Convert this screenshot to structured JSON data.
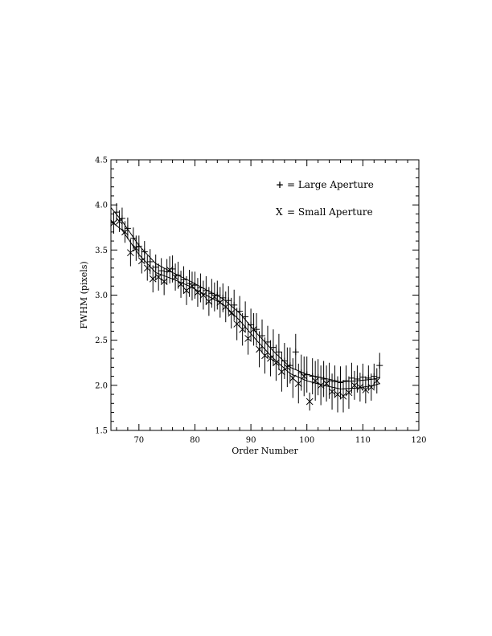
{
  "chart_data": {
    "type": "scatter",
    "xlabel": "Order Number",
    "ylabel": "FWHM (pixels)",
    "xlim": [
      65,
      120
    ],
    "ylim": [
      1.5,
      4.5
    ],
    "x_ticks": [
      "70",
      "80",
      "90",
      "100",
      "110",
      "120"
    ],
    "y_ticks": [
      "1.5",
      "2.0",
      "2.5",
      "3.0",
      "3.5",
      "4.0",
      "4.5"
    ],
    "grid": false,
    "legend": {
      "placement": "top-right",
      "entries": [
        {
          "symbol": "+",
          "text": "= Large Aperture"
        },
        {
          "symbol": "X",
          "text": "= Small Aperture"
        }
      ]
    },
    "series": [
      {
        "marker": "+",
        "x": [
          66,
          67,
          68,
          69,
          70,
          71,
          72,
          73,
          74,
          75,
          76,
          77,
          78,
          79,
          80,
          81,
          82,
          83,
          84,
          85,
          86,
          87,
          88,
          89,
          90,
          91,
          92,
          93,
          94,
          95,
          96,
          97,
          98,
          99,
          100,
          101,
          102,
          103,
          104,
          105,
          106,
          107,
          108,
          109,
          110,
          111,
          112,
          113
        ],
        "y": [
          3.92,
          3.85,
          3.74,
          3.63,
          3.54,
          3.48,
          3.37,
          3.31,
          3.27,
          3.26,
          3.29,
          3.22,
          3.17,
          3.13,
          3.11,
          3.08,
          3.05,
          3.02,
          3.0,
          2.97,
          2.94,
          2.89,
          2.82,
          2.76,
          2.67,
          2.62,
          2.55,
          2.48,
          2.42,
          2.37,
          2.27,
          2.22,
          2.37,
          2.14,
          2.12,
          2.1,
          2.09,
          2.07,
          2.05,
          2.04,
          2.03,
          2.05,
          2.08,
          2.07,
          2.09,
          2.08,
          2.1,
          2.22
        ],
        "err": [
          0.1,
          0.12,
          0.12,
          0.12,
          0.12,
          0.12,
          0.14,
          0.14,
          0.14,
          0.14,
          0.15,
          0.15,
          0.15,
          0.15,
          0.15,
          0.16,
          0.16,
          0.16,
          0.16,
          0.16,
          0.16,
          0.17,
          0.17,
          0.17,
          0.18,
          0.18,
          0.18,
          0.18,
          0.2,
          0.2,
          0.2,
          0.2,
          0.2,
          0.2,
          0.2,
          0.2,
          0.2,
          0.2,
          0.2,
          0.18,
          0.18,
          0.17,
          0.17,
          0.15,
          0.15,
          0.14,
          0.14,
          0.14
        ]
      },
      {
        "marker": "X",
        "x": [
          65.5,
          66.5,
          67.5,
          68.5,
          69.5,
          70.5,
          71.5,
          72.5,
          73.5,
          74.5,
          75.5,
          76.5,
          77.5,
          78.5,
          79.5,
          80.5,
          81.5,
          82.5,
          83.5,
          84.5,
          85.5,
          86.5,
          87.5,
          88.5,
          89.5,
          90.5,
          91.5,
          92.5,
          93.5,
          94.5,
          95.5,
          96.5,
          97.5,
          98.5,
          99.5,
          100.5,
          101.5,
          102.5,
          103.5,
          104.5,
          105.5,
          106.5,
          107.5,
          108.5,
          109.5,
          110.5,
          111.5,
          112.5
        ],
        "y": [
          3.8,
          3.82,
          3.7,
          3.47,
          3.52,
          3.38,
          3.3,
          3.18,
          3.2,
          3.15,
          3.28,
          3.2,
          3.12,
          3.05,
          3.1,
          3.03,
          3.0,
          2.93,
          2.98,
          2.92,
          2.87,
          2.8,
          2.68,
          2.62,
          2.52,
          2.62,
          2.4,
          2.33,
          2.3,
          2.25,
          2.15,
          2.2,
          2.08,
          2.02,
          2.1,
          1.82,
          2.05,
          2.0,
          2.02,
          1.93,
          1.9,
          1.88,
          1.92,
          2.0,
          1.98,
          1.95,
          1.98,
          2.05
        ],
        "err": [
          0.12,
          0.12,
          0.12,
          0.15,
          0.14,
          0.14,
          0.14,
          0.15,
          0.15,
          0.15,
          0.15,
          0.15,
          0.15,
          0.16,
          0.16,
          0.16,
          0.16,
          0.16,
          0.16,
          0.17,
          0.17,
          0.17,
          0.18,
          0.18,
          0.18,
          0.18,
          0.2,
          0.2,
          0.2,
          0.2,
          0.22,
          0.22,
          0.22,
          0.22,
          0.22,
          0.1,
          0.22,
          0.22,
          0.2,
          0.2,
          0.2,
          0.18,
          0.18,
          0.16,
          0.16,
          0.15,
          0.15,
          0.14
        ]
      }
    ],
    "fit_curves": [
      {
        "x": [
          65,
          67,
          70,
          73,
          76,
          79,
          82,
          85,
          88,
          91,
          94,
          97,
          100,
          103,
          106,
          109,
          112,
          113
        ],
        "y": [
          3.97,
          3.82,
          3.55,
          3.35,
          3.25,
          3.16,
          3.06,
          2.96,
          2.8,
          2.58,
          2.38,
          2.2,
          2.12,
          2.08,
          2.04,
          2.05,
          2.07,
          2.09
        ]
      },
      {
        "x": [
          65,
          67,
          70,
          73,
          76,
          79,
          82,
          85,
          88,
          91,
          94,
          97,
          100,
          103,
          106,
          109,
          112,
          113
        ],
        "y": [
          3.82,
          3.72,
          3.45,
          3.25,
          3.18,
          3.1,
          3.0,
          2.9,
          2.72,
          2.5,
          2.3,
          2.13,
          2.05,
          2.0,
          1.96,
          1.97,
          2.0,
          2.02
        ]
      }
    ]
  }
}
